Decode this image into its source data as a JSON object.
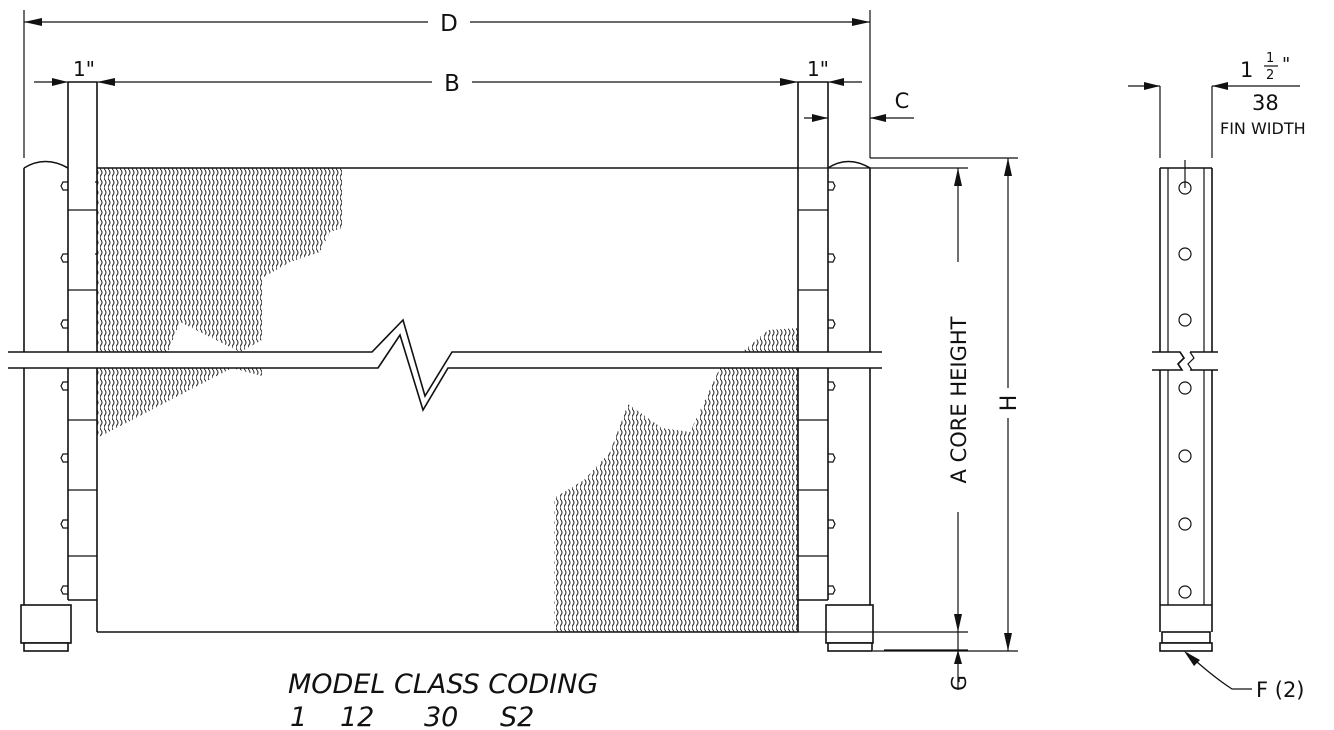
{
  "dimensions": {
    "d": "D",
    "b": "B",
    "c": "C",
    "one_inch_left": "1\"",
    "one_inch_right": "1\"",
    "core_height": "A  CORE  HEIGHT",
    "h": "H",
    "g": "G",
    "fin_width_whole": "1",
    "fin_width_num": "1",
    "fin_width_den": "2",
    "fin_width_inch_mark": "\"",
    "fin_width_mm": "38",
    "fin_width_label": "FIN WIDTH",
    "fitting": "F  (2)"
  },
  "model_coding": {
    "title": "MODEL  CLASS CODING",
    "codes": [
      "1",
      "12",
      "30",
      "S2"
    ]
  }
}
